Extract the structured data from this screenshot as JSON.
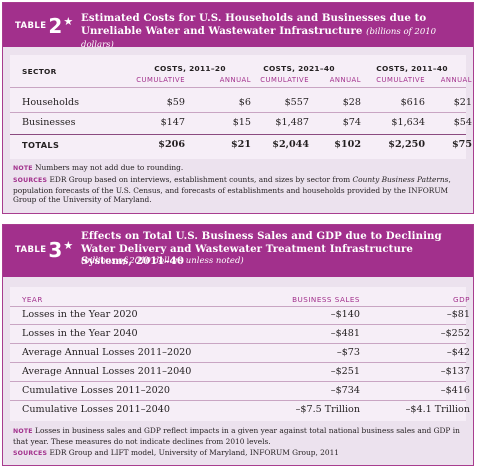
{
  "table2": {
    "label": "TABLE",
    "number": "2",
    "star": "★",
    "title": "Estimated Costs for U.S. Households and Businesses due to Unreliable Water and Wastewater Infrastructure",
    "title_unit": "(billions of 2010 dollars)",
    "sector_header": "SECTOR",
    "groups": [
      "COSTS, 2011–20",
      "COSTS, 2021–40",
      "COSTS, 2011–40"
    ],
    "subheaders": [
      "CUMULATIVE",
      "ANNUAL",
      "CUMULATIVE",
      "ANNUAL",
      "CUMULATIVE",
      "ANNUAL"
    ],
    "rows": [
      {
        "label": "Households",
        "cells": [
          "$59",
          "$6",
          "$557",
          "$28",
          "$616",
          "$21"
        ]
      },
      {
        "label": "Businesses",
        "cells": [
          "$147",
          "$15",
          "$1,487",
          "$74",
          "$1,634",
          "$54"
        ]
      }
    ],
    "total": {
      "label": "TOTALS",
      "cells": [
        "$206",
        "$21",
        "$2,044",
        "$102",
        "$2,250",
        "$75"
      ]
    },
    "note_label": "NOTE",
    "note_text": "Numbers may not add due to rounding.",
    "sources_label": "SOURCES",
    "sources_text_a": "EDR Group based on interviews, establishment counts, and sizes by sector from ",
    "sources_text_italic": "County Business Patterns",
    "sources_text_b": ", population forecasts of the U.S. Census, and forecasts of establishments and households provided by the INFORUM Group of the University of Maryland."
  },
  "table3": {
    "label": "TABLE",
    "number": "3",
    "star": "★",
    "title": "Effects on Total U.S. Business Sales and GDP due to Declining Water Delivery and Wastewater Treatment Infrastructure Systems, 2011–40",
    "subtitle": "(billions of 2010 dollars unless noted)",
    "headers": [
      "YEAR",
      "BUSINESS SALES",
      "GDP"
    ],
    "rows": [
      {
        "label": "Losses in the Year 2020",
        "sales": "–$140",
        "gdp": "–$81"
      },
      {
        "label": "Losses in the Year 2040",
        "sales": "–$481",
        "gdp": "–$252"
      },
      {
        "label": "Average Annual Losses 2011–2020",
        "sales": "–$73",
        "gdp": "–$42"
      },
      {
        "label": "Average Annual Losses 2011–2040",
        "sales": "–$251",
        "gdp": "–$137"
      },
      {
        "label": "Cumulative Losses 2011–2020",
        "sales": "–$734",
        "gdp": "–$416"
      },
      {
        "label": "Cumulative Losses 2011–2040",
        "sales": "–$7.5 Trillion",
        "gdp": "–$4.1 Trillion"
      }
    ],
    "note_label": "NOTE",
    "note_text": "Losses in business sales and GDP reflect impacts in a given year against total national business sales and GDP in that year. These measures do not indicate declines from 2010 levels.",
    "sources_label": "SOURCES",
    "sources_text": "EDR Group and LIFT model, University of Maryland, INFORUM Group, 2011"
  },
  "colors": {
    "accent": "#a2308c",
    "panel": "#ece2ee",
    "sheet": "#f6eef7",
    "text": "#231f20"
  }
}
